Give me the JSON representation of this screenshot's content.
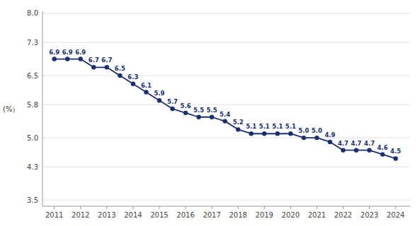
{
  "chart_data": {
    "type": "line",
    "ylabel": "(%）",
    "x": [
      2011.0,
      2011.5,
      2012.0,
      2012.5,
      2013.0,
      2013.5,
      2014.0,
      2014.5,
      2015.0,
      2015.5,
      2016.0,
      2016.5,
      2017.0,
      2017.5,
      2018.0,
      2018.5,
      2019.0,
      2019.5,
      2020.0,
      2020.5,
      2021.0,
      2021.5,
      2022.0,
      2022.5,
      2023.0,
      2023.5,
      2024.0
    ],
    "values": [
      6.9,
      6.9,
      6.9,
      6.7,
      6.7,
      6.5,
      6.3,
      6.1,
      5.9,
      5.7,
      5.6,
      5.5,
      5.5,
      5.4,
      5.2,
      5.1,
      5.1,
      5.1,
      5.1,
      5.0,
      5.0,
      4.9,
      4.7,
      4.7,
      4.7,
      4.6,
      4.5
    ],
    "value_labels": [
      "6.9",
      "6.9",
      "6.9",
      "6.7",
      "6.7",
      "6.5",
      "6.3",
      "6.1",
      "5.9",
      "5.7",
      "5.6",
      "5.5",
      "5.5",
      "5.4",
      "5.2",
      "5.1",
      "5.1",
      "5.1",
      "5.1",
      "5.0",
      "5.0",
      "4.9",
      "4.7",
      "4.7",
      "4.7",
      "4.6",
      "4.5"
    ],
    "data_labels": true,
    "color": "#1a2f6e",
    "marker": "circle",
    "xlim": [
      2010.55,
      2024.55
    ],
    "xticks": [
      2011,
      2012,
      2013,
      2014,
      2015,
      2016,
      2017,
      2018,
      2019,
      2020,
      2021,
      2022,
      2023,
      2024
    ],
    "ylim": [
      3.35,
      8.05
    ],
    "yticks": [
      3.5,
      4.3,
      {
        "value": 5.0,
        "label": "5.0"
      },
      5.8,
      6.5,
      7.3,
      {
        "value": 8.0,
        "label": "8.0"
      }
    ],
    "grid": true
  }
}
